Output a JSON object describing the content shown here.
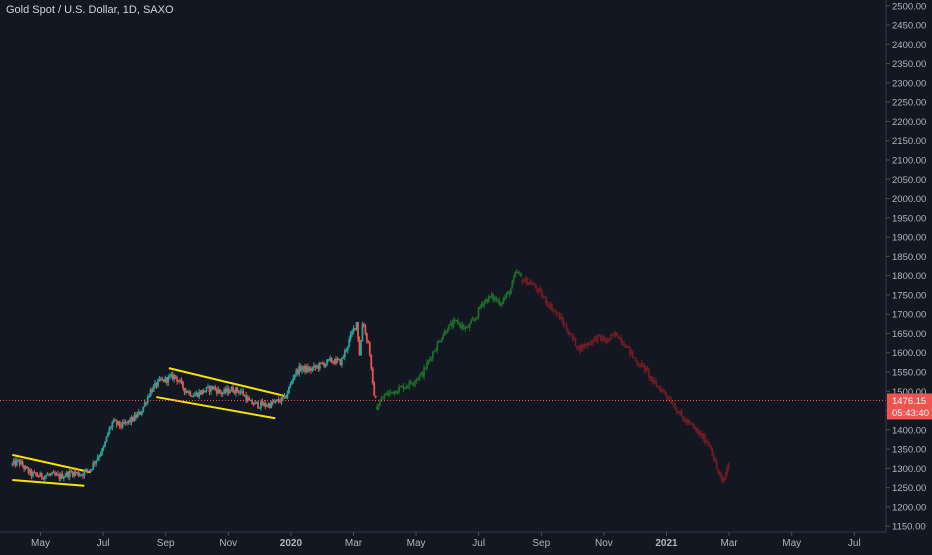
{
  "header": {
    "title": "Gold Spot / U.S. Dollar, 1D, SAXO"
  },
  "chart_data": {
    "type": "candlestick",
    "title": "Gold Spot / U.S. Dollar, 1D, SAXO",
    "ylim": [
      1135,
      2515
    ],
    "y_ticks": [
      1150,
      1200,
      1250,
      1300,
      1350,
      1400,
      1450,
      1500,
      1550,
      1600,
      1650,
      1700,
      1750,
      1800,
      1850,
      1900,
      1950,
      2000,
      2050,
      2100,
      2150,
      2200,
      2250,
      2300,
      2350,
      2400,
      2450,
      2500
    ],
    "y_tick_labels": [
      "1150.00",
      "1200.00",
      "1250.00",
      "1300.00",
      "1350.00",
      "1400.00",
      "1450.00",
      "1500.00",
      "1550.00",
      "1600.00",
      "1650.00",
      "1700.00",
      "1750.00",
      "1800.00",
      "1850.00",
      "1900.00",
      "1950.00",
      "2000.00",
      "2050.00",
      "2100.00",
      "2150.00",
      "2200.00",
      "2250.00",
      "2300.00",
      "2350.00",
      "2400.00",
      "2450.00",
      "2500.00"
    ],
    "x_ticks": [
      {
        "label": "May",
        "month": 4
      },
      {
        "label": "Jul",
        "month": 6
      },
      {
        "label": "Sep",
        "month": 8
      },
      {
        "label": "Nov",
        "month": 10
      },
      {
        "label": "2020",
        "month": 12
      },
      {
        "label": "Mar",
        "month": 14
      },
      {
        "label": "May",
        "month": 16
      },
      {
        "label": "Jul",
        "month": 18
      },
      {
        "label": "Sep",
        "month": 20
      },
      {
        "label": "Nov",
        "month": 22
      },
      {
        "label": "2021",
        "month": 24
      },
      {
        "label": "Mar",
        "month": 26
      },
      {
        "label": "May",
        "month": 28
      },
      {
        "label": "Jul",
        "month": 30
      }
    ],
    "x_range_months": [
      3.1,
      31
    ],
    "path_points": [
      [
        3.1,
        1310
      ],
      [
        3.3,
        1318
      ],
      [
        3.5,
        1300
      ],
      [
        3.7,
        1285
      ],
      [
        4.0,
        1280
      ],
      [
        4.3,
        1283
      ],
      [
        4.6,
        1278
      ],
      [
        5.0,
        1290
      ],
      [
        5.3,
        1285
      ],
      [
        5.6,
        1300
      ],
      [
        5.9,
        1340
      ],
      [
        6.0,
        1348
      ],
      [
        6.15,
        1390
      ],
      [
        6.3,
        1420
      ],
      [
        6.6,
        1410
      ],
      [
        6.9,
        1425
      ],
      [
        7.2,
        1445
      ],
      [
        7.5,
        1500
      ],
      [
        7.8,
        1525
      ],
      [
        8.0,
        1530
      ],
      [
        8.3,
        1540
      ],
      [
        8.6,
        1505
      ],
      [
        8.9,
        1490
      ],
      [
        9.2,
        1500
      ],
      [
        9.5,
        1510
      ],
      [
        9.8,
        1495
      ],
      [
        10.1,
        1505
      ],
      [
        10.4,
        1500
      ],
      [
        10.7,
        1470
      ],
      [
        11.0,
        1465
      ],
      [
        11.3,
        1465
      ],
      [
        11.6,
        1475
      ],
      [
        11.8,
        1480
      ],
      [
        12.0,
        1520
      ],
      [
        12.1,
        1545
      ],
      [
        12.3,
        1560
      ],
      [
        12.6,
        1555
      ],
      [
        13.0,
        1570
      ],
      [
        13.3,
        1580
      ],
      [
        13.6,
        1575
      ],
      [
        13.9,
        1640
      ],
      [
        14.1,
        1680
      ],
      [
        14.2,
        1590
      ],
      [
        14.3,
        1690
      ],
      [
        14.4,
        1640
      ],
      [
        14.5,
        1620
      ],
      [
        14.6,
        1520
      ],
      [
        14.75,
        1460
      ]
    ],
    "path_colors": {
      "up": "#26a69a",
      "down": "#ef5350"
    },
    "projection_up_points": [
      [
        14.75,
        1460
      ],
      [
        15.0,
        1490
      ],
      [
        15.4,
        1505
      ],
      [
        15.8,
        1520
      ],
      [
        16.2,
        1545
      ],
      [
        16.5,
        1595
      ],
      [
        16.8,
        1640
      ],
      [
        17.0,
        1665
      ],
      [
        17.3,
        1680
      ],
      [
        17.6,
        1660
      ],
      [
        17.9,
        1690
      ],
      [
        18.1,
        1730
      ],
      [
        18.4,
        1745
      ],
      [
        18.7,
        1730
      ],
      [
        19.0,
        1760
      ],
      [
        19.2,
        1810
      ],
      [
        19.4,
        1790
      ]
    ],
    "projection_down_points": [
      [
        19.4,
        1790
      ],
      [
        19.7,
        1780
      ],
      [
        20.0,
        1750
      ],
      [
        20.3,
        1720
      ],
      [
        20.6,
        1690
      ],
      [
        20.9,
        1650
      ],
      [
        21.2,
        1610
      ],
      [
        21.5,
        1625
      ],
      [
        21.8,
        1640
      ],
      [
        22.1,
        1630
      ],
      [
        22.4,
        1650
      ],
      [
        22.7,
        1620
      ],
      [
        23.0,
        1580
      ],
      [
        23.3,
        1560
      ],
      [
        23.6,
        1520
      ],
      [
        23.9,
        1500
      ],
      [
        24.2,
        1470
      ],
      [
        24.5,
        1430
      ],
      [
        24.8,
        1410
      ],
      [
        25.1,
        1385
      ],
      [
        25.4,
        1360
      ],
      [
        25.6,
        1300
      ],
      [
        25.8,
        1260
      ],
      [
        26.0,
        1320
      ]
    ],
    "projection_colors": {
      "up": "#1e6b2a",
      "down": "#6e1c25"
    },
    "trendlines": [
      {
        "from": [
          3.1,
          1335
        ],
        "to": [
          5.6,
          1290
        ]
      },
      {
        "from": [
          3.1,
          1270
        ],
        "to": [
          5.4,
          1255
        ]
      },
      {
        "from": [
          8.1,
          1560
        ],
        "to": [
          11.8,
          1488
        ]
      },
      {
        "from": [
          7.7,
          1485
        ],
        "to": [
          11.5,
          1430
        ]
      }
    ],
    "trendline_color": "#f5e400",
    "last_price": {
      "value": 1476.15,
      "label": "1476.15",
      "countdown": "05:43:40",
      "color": "#ef5350"
    },
    "grid": false
  }
}
